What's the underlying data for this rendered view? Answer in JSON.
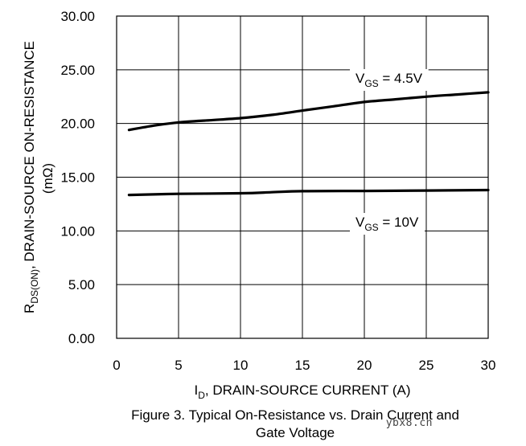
{
  "chart_data": {
    "type": "line",
    "xlim": [
      0,
      30
    ],
    "ylim": [
      0,
      30
    ],
    "x_ticks": [
      0,
      5,
      10,
      15,
      20,
      25,
      30
    ],
    "x_tick_labels": [
      "0",
      "5",
      "10",
      "15",
      "20",
      "25",
      "30"
    ],
    "y_ticks": [
      0,
      5,
      10,
      15,
      20,
      25,
      30
    ],
    "y_tick_labels": [
      "0.00",
      "5.00",
      "10.00",
      "15.00",
      "20.00",
      "25.00",
      "30.00"
    ],
    "xlabel": {
      "main": "I",
      "sub": "D",
      "rest": ", DRAIN-SOURCE CURRENT (A)"
    },
    "ylabel": {
      "main": "R",
      "sub": "DS(ON)",
      "rest": ", DRAIN-SOURCE ON-RESISTANCE",
      "unit": "(mΩ)"
    },
    "grid": true,
    "series": [
      {
        "name": "VGS = 4.5V",
        "label": {
          "main": "V",
          "sub": "GS",
          "rest": " = 4.5V"
        },
        "x": [
          1,
          3,
          5,
          7.5,
          10,
          12.5,
          15,
          17.5,
          20,
          22.5,
          25,
          27.5,
          30
        ],
        "y": [
          19.4,
          19.8,
          20.1,
          20.3,
          20.5,
          20.8,
          21.2,
          21.6,
          22.0,
          22.25,
          22.5,
          22.7,
          22.9
        ]
      },
      {
        "name": "VGS = 10V",
        "label": {
          "main": "V",
          "sub": "GS",
          "rest": " = 10V"
        },
        "x": [
          1,
          5,
          10,
          12.5,
          15,
          20,
          25,
          30
        ],
        "y": [
          13.35,
          13.45,
          13.5,
          13.6,
          13.7,
          13.72,
          13.76,
          13.8
        ]
      }
    ]
  },
  "caption": {
    "line1": "Figure 3. Typical On-Resistance vs. Drain Current and",
    "line2": "Gate Voltage"
  },
  "watermark": "ybx8.cn"
}
